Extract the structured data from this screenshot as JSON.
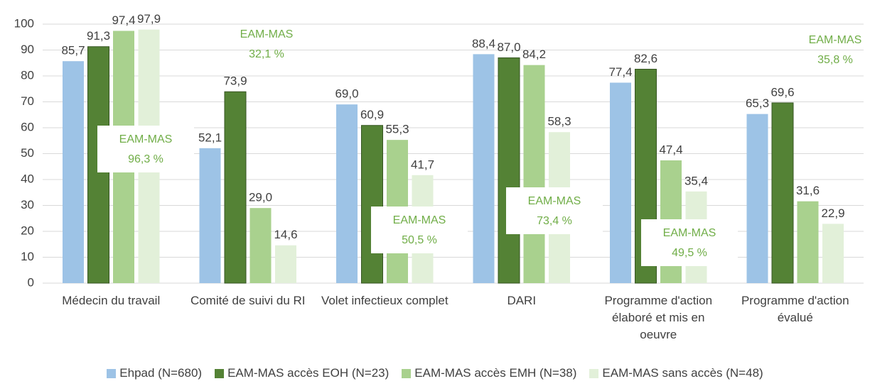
{
  "chart_data": {
    "type": "bar",
    "categories": [
      "Médecin du travail",
      "Comité de suivi du RI",
      "Volet infectieux complet",
      "DARI",
      "Programme d'action élaboré et mis en oeuvre",
      "Programme d'action évalué"
    ],
    "series": [
      {
        "name": "Ehpad (N=680)",
        "color": "#9dc3e6",
        "values": [
          85.7,
          52.1,
          69.0,
          88.4,
          77.4,
          65.3
        ],
        "value_labels": [
          "85,7",
          "52,1",
          "69,0",
          "88,4",
          "77,4",
          "65,3"
        ]
      },
      {
        "name": "EAM-MAS accès EOH (N=23)",
        "color": "#548235",
        "values": [
          91.3,
          73.9,
          60.9,
          87.0,
          82.6,
          69.6
        ],
        "value_labels": [
          "91,3",
          "73,9",
          "60,9",
          "87,0",
          "82,6",
          "69,6"
        ]
      },
      {
        "name": "EAM-MAS accès EMH (N=38)",
        "color": "#a9d18e",
        "values": [
          97.4,
          29.0,
          55.3,
          84.2,
          47.4,
          31.6
        ],
        "value_labels": [
          "97,4",
          "29,0",
          "55,3",
          "84,2",
          "47,4",
          "31,6"
        ]
      },
      {
        "name": "EAM-MAS sans accès (N=48)",
        "color": "#e2f0d9",
        "values": [
          97.9,
          14.6,
          41.7,
          58.3,
          35.4,
          22.9
        ],
        "value_labels": [
          "97,9",
          "14,6",
          "41,7",
          "58,3",
          "35,4",
          "22,9"
        ]
      }
    ],
    "annotations": [
      {
        "text": "EAM-MAS",
        "value": "96,3 %"
      },
      {
        "text": "EAM-MAS",
        "value": "32,1 %"
      },
      {
        "text": "EAM-MAS",
        "value": "50,5 %"
      },
      {
        "text": "EAM-MAS",
        "value": "73,4 %"
      },
      {
        "text": "EAM-MAS",
        "value": "49,5 %"
      },
      {
        "text": "EAM-MAS",
        "value": "35,8 %"
      }
    ],
    "ylim": [
      0,
      100
    ],
    "yticks": [
      0,
      10,
      20,
      30,
      40,
      50,
      60,
      70,
      80,
      90,
      100
    ],
    "grid": true,
    "legend": "bottom"
  }
}
